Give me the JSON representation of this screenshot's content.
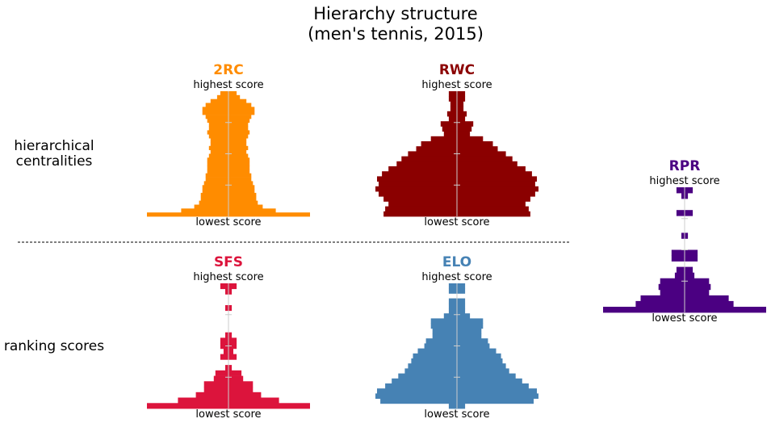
{
  "title_line1": "Hierarchy structure",
  "title_line2": "(men's tennis, 2015)",
  "row_labels": {
    "top_line1": "hierarchical",
    "top_line2": "centralities",
    "bottom": "ranking scores"
  },
  "top_label": "highest score",
  "bottom_label": "lowest score",
  "chart_data": [
    {
      "type": "bar",
      "name": "2RC",
      "color": "#ff8c00",
      "widths": [
        0.05,
        0.07,
        0.11,
        0.14,
        0.16,
        0.16,
        0.14,
        0.13,
        0.12,
        0.12,
        0.13,
        0.12,
        0.11,
        0.11,
        0.12,
        0.11,
        0.12,
        0.13,
        0.13,
        0.13,
        0.13,
        0.14,
        0.14,
        0.15,
        0.16,
        0.16,
        0.17,
        0.17,
        0.18,
        0.21,
        0.29,
        0.5
      ]
    },
    {
      "type": "bar",
      "name": "RWC",
      "color": "#8b0000",
      "widths": [
        0.05,
        0.05,
        0.04,
        0.04,
        0.06,
        0.05,
        0.1,
        0.09,
        0.08,
        0.16,
        0.22,
        0.25,
        0.3,
        0.34,
        0.37,
        0.42,
        0.46,
        0.49,
        0.48,
        0.5,
        0.48,
        0.45,
        0.42,
        0.44,
        0.45
      ]
    },
    {
      "type": "bar",
      "name": "SFS",
      "color": "#dc143c",
      "widths": [
        0.05,
        0.02,
        0.0,
        0.0,
        0.02,
        0.0,
        0.0,
        0.0,
        0.0,
        0.02,
        0.05,
        0.05,
        0.03,
        0.05,
        0.0,
        0.02,
        0.08,
        0.09,
        0.15,
        0.15,
        0.2,
        0.31,
        0.5
      ]
    },
    {
      "type": "bar",
      "name": "ELO",
      "color": "#4682b4",
      "widths": [
        0.05,
        0.05,
        0.0,
        0.05,
        0.05,
        0.05,
        0.08,
        0.16,
        0.16,
        0.15,
        0.15,
        0.19,
        0.2,
        0.24,
        0.27,
        0.28,
        0.3,
        0.32,
        0.36,
        0.4,
        0.44,
        0.49,
        0.5,
        0.47,
        0.05
      ]
    },
    {
      "type": "bar",
      "name": "RPR",
      "color": "#4b0082",
      "widths": [
        0.05,
        0.02,
        0.0,
        0.0,
        0.05,
        0.0,
        0.0,
        0.0,
        0.02,
        0.0,
        0.0,
        0.08,
        0.08,
        0.0,
        0.05,
        0.06,
        0.15,
        0.16,
        0.15,
        0.27,
        0.3,
        0.5
      ]
    }
  ]
}
